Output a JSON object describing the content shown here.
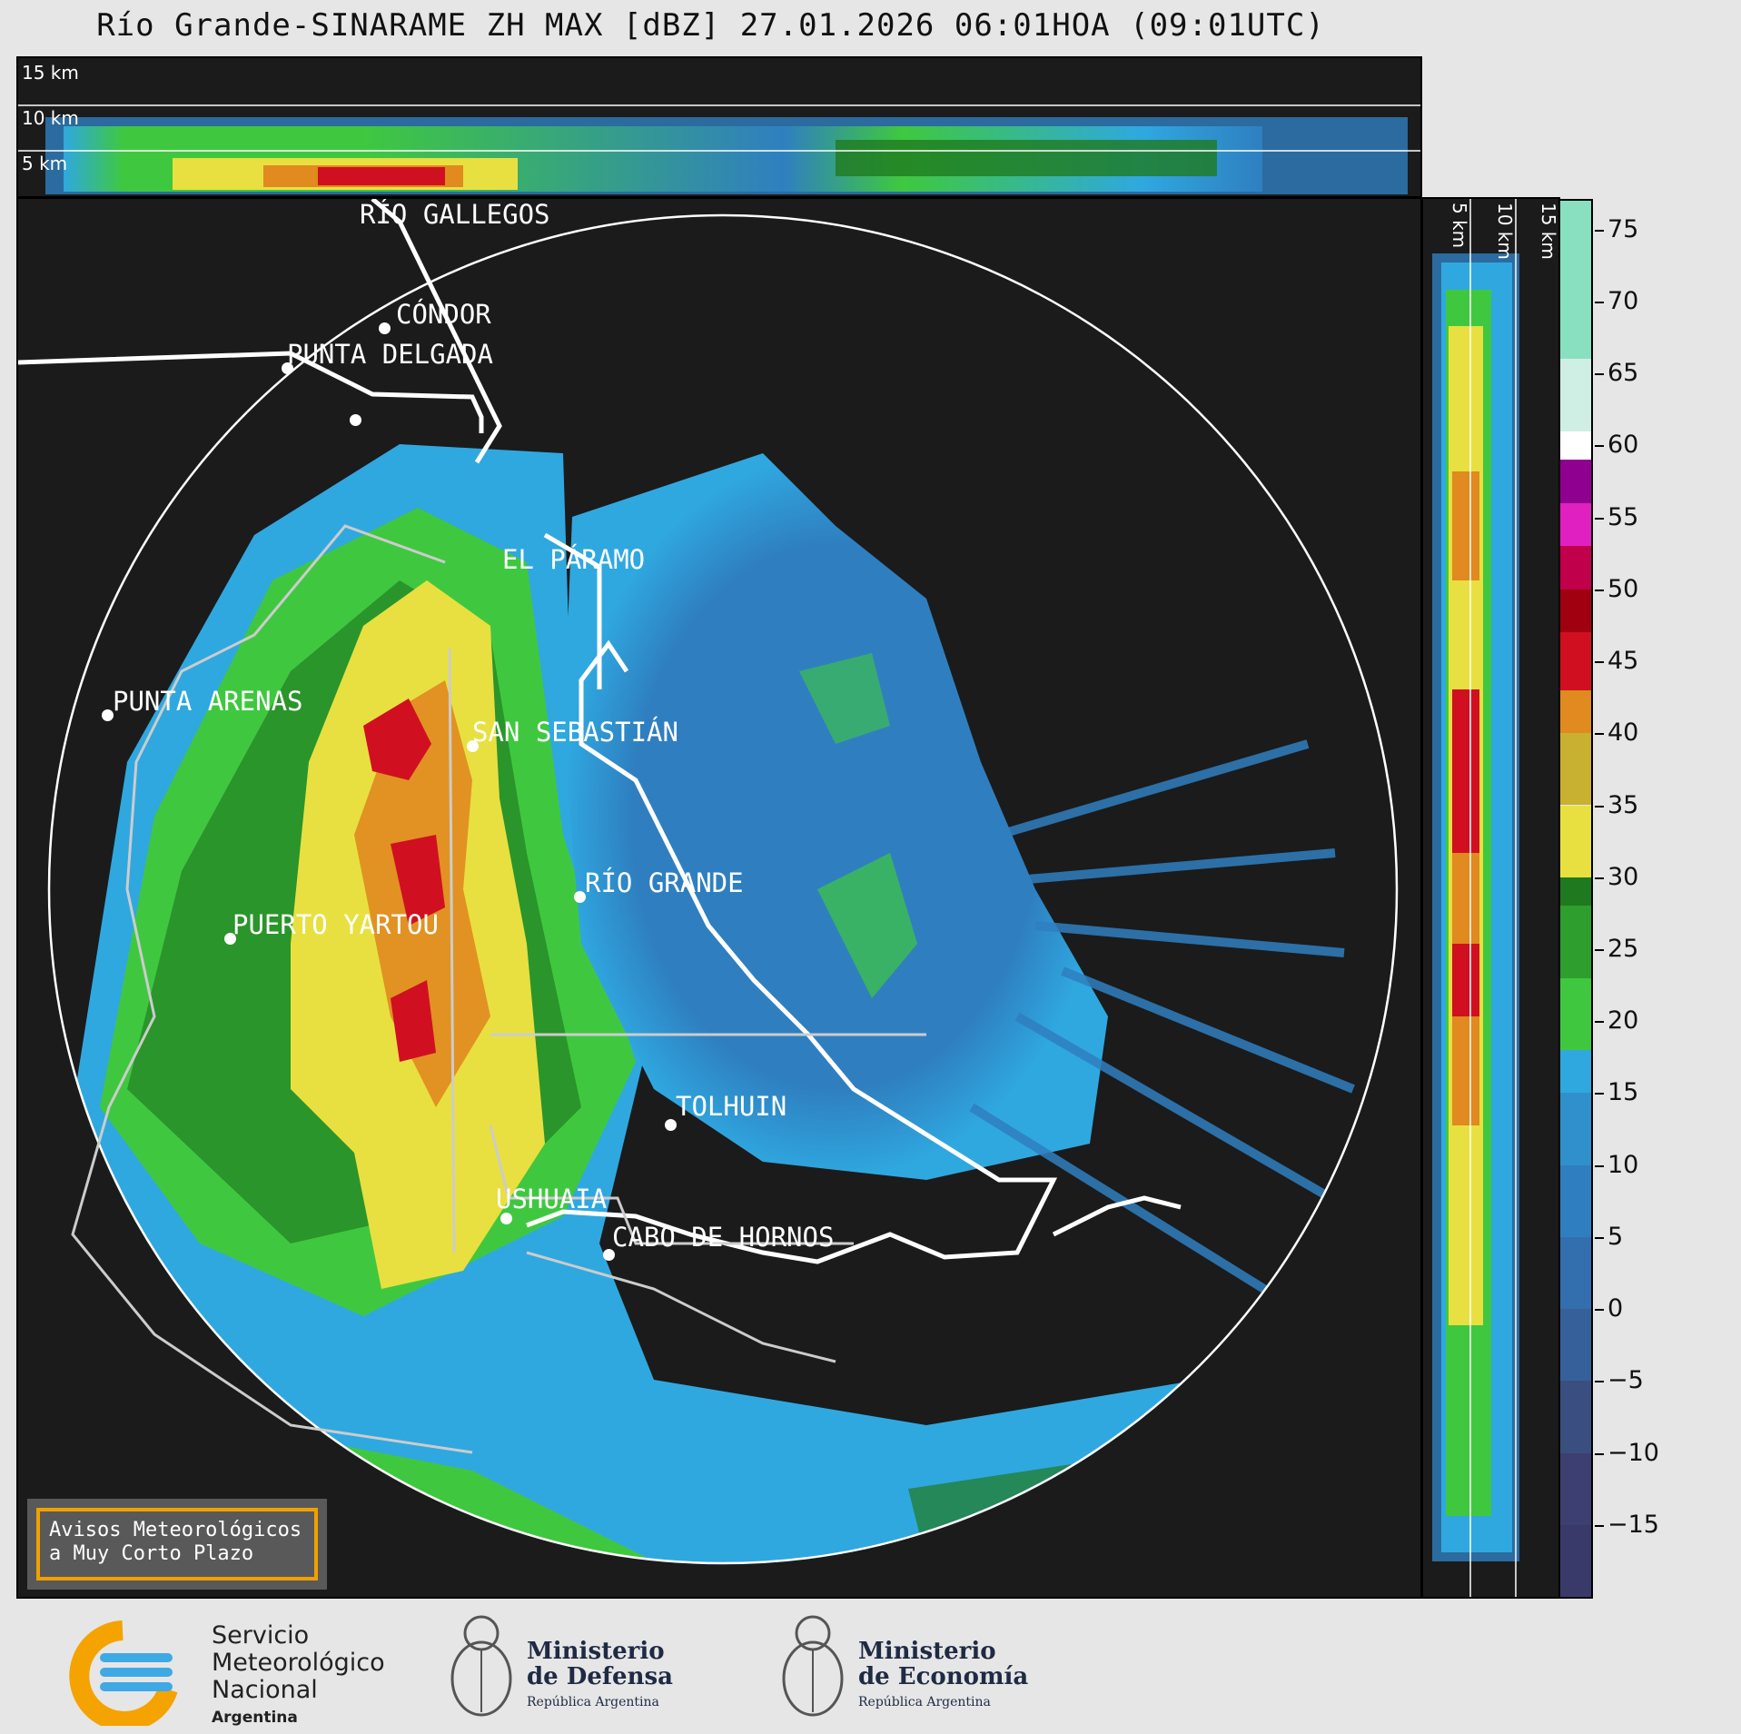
{
  "header": {
    "title": "Río Grande-SINARAME ZH MAX [dBZ] 27.01.2026 06:01HOA (09:01UTC)"
  },
  "top_panel": {
    "altitude_labels": [
      "15 km",
      "10 km",
      "5 km"
    ]
  },
  "side_panel": {
    "altitude_labels": [
      "5 km",
      "10 km",
      "15 km"
    ]
  },
  "map": {
    "cities": [
      {
        "name": "RÍO GALLEGOS"
      },
      {
        "name": "CÓNDOR"
      },
      {
        "name": "PUNTA DELGADA"
      },
      {
        "name": "EL PÁRAMO"
      },
      {
        "name": "PUNTA ARENAS"
      },
      {
        "name": "SAN SEBASTIÁN"
      },
      {
        "name": "RÍO GRANDE"
      },
      {
        "name": "PUERTO YARTOU"
      },
      {
        "name": "TOLHUIN"
      },
      {
        "name": "USHUAIA"
      },
      {
        "name": "CABO DE HORNOS"
      }
    ],
    "avisos_line1": "Avisos Meteorológicos",
    "avisos_line2": "a Muy Corto Plazo"
  },
  "colorbar": {
    "unit": "dBZ",
    "range": [
      -20,
      77
    ],
    "ticks": [
      "75",
      "70",
      "65",
      "60",
      "55",
      "50",
      "45",
      "40",
      "35",
      "30",
      "25",
      "20",
      "15",
      "10",
      "5",
      "0",
      "−5",
      "−10",
      "−15"
    ],
    "colors": {
      "lilac": "#3c3f70",
      "blue": "#2f7fc0",
      "light_blue": "#2fa8e0",
      "green": "#3fc83f",
      "dark_green": "#1f7a1f",
      "yellow": "#e8e040",
      "orange": "#e08a1f",
      "red": "#d01020",
      "magenta": "#e020c0",
      "white": "#ffffff",
      "mint": "#88e0c0"
    }
  },
  "footer": {
    "smn_line1": "Servicio",
    "smn_line2": "Meteorológico",
    "smn_line3": "Nacional",
    "smn_country": "Argentina",
    "defensa_line1": "Ministerio",
    "defensa_line2": "de Defensa",
    "defensa_sub": "República Argentina",
    "economia_line1": "Ministerio",
    "economia_line2": "de Economía",
    "economia_sub": "República Argentina"
  }
}
